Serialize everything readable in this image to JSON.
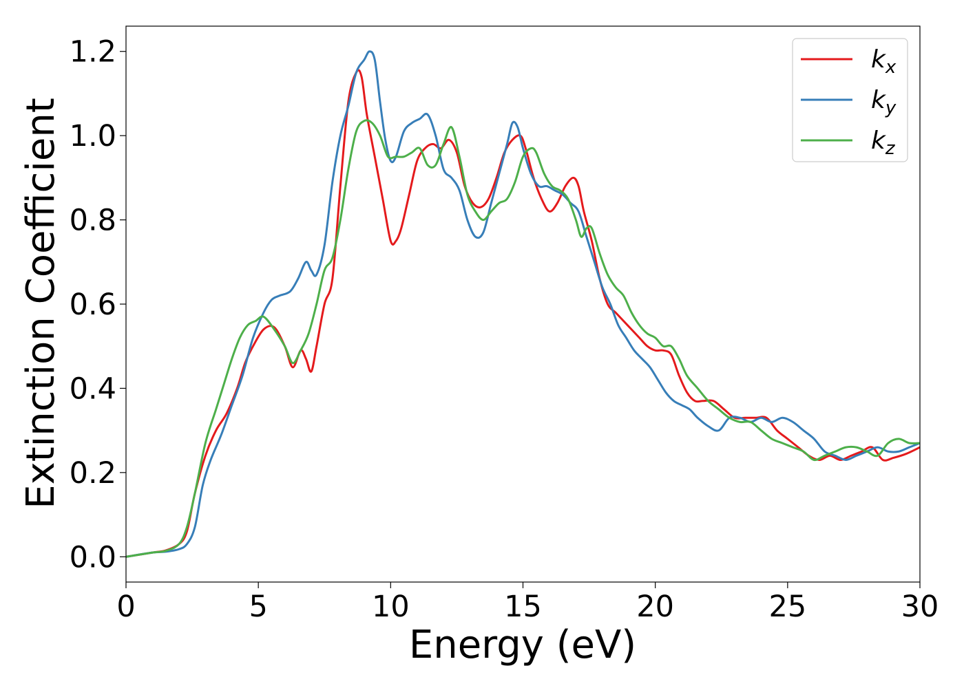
{
  "chart_data": {
    "type": "line",
    "title": "",
    "xlabel": "Energy (eV)",
    "ylabel": "Extinction Coefficient",
    "xlim": [
      0,
      30
    ],
    "ylim": [
      -0.06,
      1.26
    ],
    "xticks": [
      0,
      5,
      10,
      15,
      20,
      25,
      30
    ],
    "yticks": [
      0.0,
      0.2,
      0.4,
      0.6,
      0.8,
      1.0,
      1.2
    ],
    "xtick_labels": [
      "0",
      "5",
      "10",
      "15",
      "20",
      "25",
      "30"
    ],
    "ytick_labels": [
      "0.0",
      "0.2",
      "0.4",
      "0.6",
      "0.8",
      "1.0",
      "1.2"
    ],
    "grid": false,
    "legend_position": "top-right",
    "series": [
      {
        "name": "k_x",
        "label_base": "k",
        "label_sub": "x",
        "color": "#e41a1c",
        "x": [
          0,
          1,
          1.5,
          2,
          2.3,
          2.6,
          3.0,
          3.4,
          3.8,
          4.2,
          4.5,
          4.8,
          5.2,
          5.6,
          6.0,
          6.3,
          6.6,
          6.8,
          7.0,
          7.2,
          7.5,
          7.8,
          8.1,
          8.4,
          8.7,
          8.9,
          9.1,
          9.4,
          9.7,
          10.0,
          10.2,
          10.4,
          10.7,
          11.0,
          11.3,
          11.6,
          11.9,
          12.2,
          12.5,
          12.8,
          13.1,
          13.4,
          13.7,
          14.0,
          14.3,
          14.6,
          14.9,
          15.1,
          15.4,
          15.7,
          16.0,
          16.3,
          16.6,
          16.9,
          17.1,
          17.3,
          17.6,
          17.9,
          18.2,
          18.5,
          18.8,
          19.1,
          19.4,
          19.7,
          20.0,
          20.3,
          20.6,
          20.9,
          21.2,
          21.5,
          21.8,
          22.2,
          22.6,
          23.0,
          23.4,
          23.8,
          24.2,
          24.6,
          25.0,
          25.4,
          25.8,
          26.2,
          26.6,
          27.0,
          27.4,
          27.8,
          28.2,
          28.6,
          29.0,
          29.5,
          30.0
        ],
        "values": [
          0,
          0.01,
          0.015,
          0.03,
          0.06,
          0.15,
          0.24,
          0.3,
          0.34,
          0.4,
          0.46,
          0.5,
          0.54,
          0.545,
          0.5,
          0.45,
          0.49,
          0.47,
          0.44,
          0.5,
          0.6,
          0.66,
          0.88,
          1.08,
          1.15,
          1.14,
          1.05,
          0.95,
          0.85,
          0.75,
          0.75,
          0.78,
          0.86,
          0.94,
          0.97,
          0.98,
          0.97,
          0.99,
          0.96,
          0.88,
          0.84,
          0.83,
          0.85,
          0.9,
          0.96,
          0.99,
          1.0,
          0.97,
          0.9,
          0.85,
          0.82,
          0.84,
          0.88,
          0.9,
          0.88,
          0.82,
          0.75,
          0.66,
          0.6,
          0.58,
          0.56,
          0.54,
          0.52,
          0.5,
          0.49,
          0.49,
          0.48,
          0.43,
          0.39,
          0.37,
          0.37,
          0.37,
          0.35,
          0.33,
          0.33,
          0.33,
          0.33,
          0.3,
          0.28,
          0.26,
          0.24,
          0.23,
          0.24,
          0.23,
          0.24,
          0.25,
          0.26,
          0.23,
          0.235,
          0.245,
          0.26
        ]
      },
      {
        "name": "k_y",
        "label_base": "k",
        "label_sub": "y",
        "color": "#377eb8",
        "x": [
          0,
          1,
          1.5,
          2,
          2.3,
          2.6,
          2.9,
          3.2,
          3.6,
          4.0,
          4.4,
          4.8,
          5.2,
          5.5,
          5.8,
          6.2,
          6.5,
          6.8,
          7.0,
          7.2,
          7.5,
          7.8,
          8.1,
          8.4,
          8.7,
          9.0,
          9.2,
          9.4,
          9.6,
          9.8,
          10.0,
          10.2,
          10.5,
          10.8,
          11.1,
          11.4,
          11.7,
          12.0,
          12.3,
          12.6,
          12.9,
          13.2,
          13.5,
          13.8,
          14.1,
          14.4,
          14.6,
          14.8,
          15.0,
          15.3,
          15.6,
          15.9,
          16.2,
          16.5,
          16.8,
          17.1,
          17.4,
          17.7,
          18.0,
          18.3,
          18.6,
          18.9,
          19.2,
          19.5,
          19.8,
          20.1,
          20.4,
          20.7,
          21.0,
          21.3,
          21.6,
          22.0,
          22.4,
          22.8,
          23.2,
          23.6,
          24.0,
          24.4,
          24.8,
          25.2,
          25.6,
          26.0,
          26.4,
          26.8,
          27.2,
          27.6,
          28.0,
          28.4,
          28.8,
          29.2,
          29.6,
          30.0
        ],
        "values": [
          0,
          0.01,
          0.012,
          0.018,
          0.03,
          0.07,
          0.17,
          0.23,
          0.29,
          0.36,
          0.43,
          0.52,
          0.58,
          0.61,
          0.62,
          0.63,
          0.66,
          0.7,
          0.68,
          0.67,
          0.74,
          0.89,
          1.0,
          1.07,
          1.15,
          1.18,
          1.2,
          1.18,
          1.08,
          0.99,
          0.94,
          0.95,
          1.01,
          1.03,
          1.04,
          1.05,
          1.0,
          0.92,
          0.9,
          0.87,
          0.8,
          0.76,
          0.77,
          0.84,
          0.91,
          0.98,
          1.03,
          1.02,
          0.97,
          0.91,
          0.88,
          0.88,
          0.87,
          0.86,
          0.84,
          0.82,
          0.76,
          0.7,
          0.64,
          0.6,
          0.55,
          0.52,
          0.49,
          0.47,
          0.45,
          0.42,
          0.39,
          0.37,
          0.36,
          0.35,
          0.33,
          0.31,
          0.3,
          0.33,
          0.33,
          0.32,
          0.33,
          0.32,
          0.33,
          0.32,
          0.3,
          0.28,
          0.25,
          0.24,
          0.23,
          0.24,
          0.25,
          0.26,
          0.25,
          0.25,
          0.26,
          0.27
        ]
      },
      {
        "name": "k_z",
        "label_base": "k",
        "label_sub": "z",
        "color": "#4daf4a",
        "x": [
          0,
          1,
          1.5,
          2,
          2.3,
          2.6,
          3.0,
          3.4,
          3.7,
          4.0,
          4.3,
          4.6,
          4.9,
          5.2,
          5.6,
          6.0,
          6.3,
          6.6,
          6.9,
          7.2,
          7.5,
          7.8,
          8.1,
          8.4,
          8.7,
          9.0,
          9.3,
          9.6,
          9.9,
          10.2,
          10.5,
          10.8,
          11.1,
          11.4,
          11.7,
          12.0,
          12.3,
          12.6,
          12.9,
          13.2,
          13.5,
          13.8,
          14.1,
          14.4,
          14.7,
          15.0,
          15.3,
          15.5,
          15.8,
          16.1,
          16.4,
          16.7,
          17.0,
          17.2,
          17.4,
          17.6,
          17.9,
          18.2,
          18.5,
          18.8,
          19.1,
          19.4,
          19.7,
          20.0,
          20.3,
          20.6,
          20.9,
          21.2,
          21.6,
          22.0,
          22.4,
          22.8,
          23.2,
          23.6,
          24.0,
          24.4,
          24.8,
          25.2,
          25.6,
          26.0,
          26.4,
          26.8,
          27.2,
          27.6,
          28.0,
          28.4,
          28.8,
          29.2,
          29.6,
          30.0
        ],
        "values": [
          0,
          0.01,
          0.014,
          0.03,
          0.07,
          0.15,
          0.27,
          0.35,
          0.41,
          0.47,
          0.52,
          0.55,
          0.56,
          0.57,
          0.54,
          0.5,
          0.46,
          0.49,
          0.53,
          0.6,
          0.68,
          0.71,
          0.8,
          0.92,
          1.01,
          1.035,
          1.03,
          1.0,
          0.95,
          0.95,
          0.95,
          0.96,
          0.97,
          0.93,
          0.93,
          0.98,
          1.02,
          0.95,
          0.86,
          0.82,
          0.8,
          0.82,
          0.84,
          0.85,
          0.89,
          0.95,
          0.97,
          0.96,
          0.91,
          0.88,
          0.87,
          0.85,
          0.8,
          0.76,
          0.78,
          0.78,
          0.72,
          0.67,
          0.64,
          0.62,
          0.58,
          0.55,
          0.53,
          0.52,
          0.5,
          0.5,
          0.47,
          0.43,
          0.4,
          0.37,
          0.35,
          0.33,
          0.32,
          0.32,
          0.3,
          0.28,
          0.27,
          0.26,
          0.25,
          0.23,
          0.24,
          0.25,
          0.26,
          0.26,
          0.25,
          0.24,
          0.27,
          0.28,
          0.27,
          0.27
        ]
      }
    ]
  }
}
